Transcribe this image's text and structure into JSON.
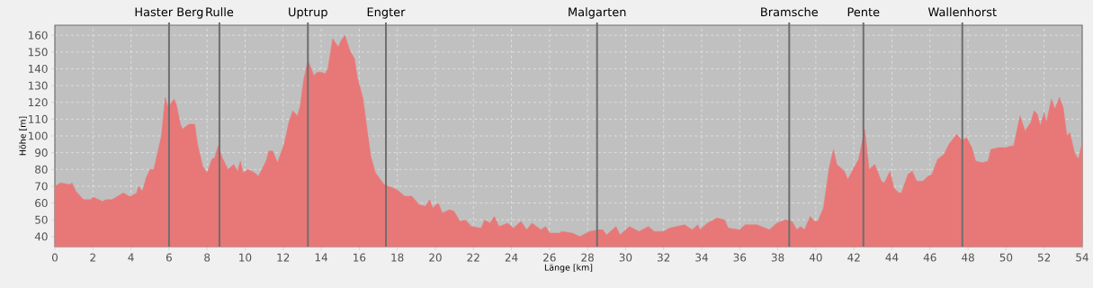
{
  "chart_data": {
    "type": "area",
    "xlabel": "Länge [km]",
    "ylabel": "Höhe [m]",
    "xlim": [
      0,
      54
    ],
    "ylim": [
      34,
      166
    ],
    "xticks": [
      0,
      2,
      4,
      6,
      8,
      10,
      12,
      14,
      16,
      18,
      20,
      22,
      24,
      26,
      28,
      30,
      32,
      34,
      36,
      38,
      40,
      42,
      44,
      46,
      48,
      50,
      52,
      54
    ],
    "yticks": [
      40,
      50,
      60,
      70,
      80,
      90,
      100,
      110,
      120,
      130,
      140,
      150,
      160
    ],
    "grid": true,
    "marker": "none",
    "ref_lines": [
      {
        "axis": "x",
        "value": 6.0,
        "label": "Haster Berg",
        "color": "#6e6e6e"
      },
      {
        "axis": "x",
        "value": 8.65,
        "label": "Rulle",
        "color": "#6e6e6e"
      },
      {
        "axis": "x",
        "value": 13.3,
        "label": "Uptrup",
        "color": "#6e6e6e"
      },
      {
        "axis": "x",
        "value": 17.4,
        "label": "Engter",
        "color": "#6e6e6e"
      },
      {
        "axis": "x",
        "value": 28.5,
        "label": "Malgarten",
        "color": "#6e6e6e"
      },
      {
        "axis": "x",
        "value": 38.6,
        "label": "Bramsche",
        "color": "#6e6e6e"
      },
      {
        "axis": "x",
        "value": 42.5,
        "label": "Pente",
        "color": "#6e6e6e"
      },
      {
        "axis": "x",
        "value": 47.7,
        "label": "Wallenhorst",
        "color": "#6e6e6e"
      }
    ],
    "series": [
      {
        "color": "#e87878",
        "x": [
          0,
          0.3,
          0.8,
          0.9,
          1.1,
          1.5,
          1.9,
          2.0,
          2.3,
          2.5,
          2.7,
          3.0,
          3.3,
          3.6,
          3.9,
          4.0,
          4.3,
          4.4,
          4.6,
          4.8,
          5.0,
          5.2,
          5.4,
          5.6,
          5.8,
          5.95,
          6.27,
          6.4,
          6.6,
          6.7,
          7.05,
          7.35,
          7.5,
          7.77,
          8.0,
          8.25,
          8.4,
          8.58,
          8.8,
          9.1,
          9.4,
          9.6,
          9.75,
          9.9,
          10.15,
          10.5,
          10.7,
          11.1,
          11.25,
          11.45,
          11.7,
          12.05,
          12.3,
          12.5,
          12.75,
          12.9,
          13.07,
          13.3,
          13.55,
          13.6,
          13.8,
          14.0,
          14.2,
          14.35,
          14.6,
          14.9,
          15.05,
          15.25,
          15.5,
          15.75,
          15.9,
          16.2,
          16.4,
          16.6,
          16.85,
          17.3,
          17.97,
          18.4,
          18.76,
          19.15,
          19.47,
          19.7,
          19.86,
          20.15,
          20.37,
          20.74,
          20.98,
          21.3,
          21.57,
          21.9,
          22.4,
          22.6,
          22.86,
          23.1,
          23.35,
          23.8,
          24.1,
          24.5,
          24.8,
          25.08,
          25.55,
          25.8,
          26.0,
          26.5,
          26.65,
          27.2,
          27.6,
          28.1,
          28.56,
          28.8,
          29.0,
          29.5,
          29.7,
          30.2,
          30.7,
          31.2,
          31.5,
          32.0,
          32.3,
          33.1,
          33.5,
          33.8,
          33.9,
          34.3,
          34.8,
          35.2,
          35.4,
          35.98,
          36.3,
          36.9,
          37.56,
          37.95,
          38.4,
          38.75,
          39.0,
          39.2,
          39.4,
          39.7,
          39.94,
          40.1,
          40.4,
          40.7,
          40.93,
          41.1,
          41.5,
          41.68,
          42.0,
          42.25,
          42.57,
          42.8,
          43.1,
          43.44,
          43.6,
          43.9,
          44.1,
          44.36,
          44.5,
          44.84,
          45.07,
          45.3,
          45.63,
          45.9,
          46.1,
          46.4,
          46.73,
          47.0,
          47.4,
          47.7,
          47.92,
          48.2,
          48.4,
          48.74,
          49.05,
          49.2,
          49.6,
          50.0,
          50.24,
          50.4,
          50.73,
          51.0,
          51.3,
          51.47,
          51.64,
          51.8,
          52.0,
          52.12,
          52.38,
          52.57,
          52.8,
          53.0,
          53.2,
          53.35,
          53.6,
          53.8,
          54.0
        ],
        "values": [
          70,
          72,
          71,
          72,
          67,
          62,
          62,
          63.5,
          62,
          61,
          62,
          62,
          64,
          66,
          64,
          64,
          66,
          70,
          67,
          75,
          80,
          80,
          90,
          100,
          123,
          117,
          122,
          118,
          107,
          104,
          107,
          107,
          95,
          82,
          78,
          86,
          87,
          94,
          87,
          80,
          83,
          79,
          85,
          78,
          80,
          78,
          76,
          85,
          91,
          91,
          84,
          95,
          108,
          115,
          112,
          118,
          133,
          145,
          138,
          136,
          138,
          138,
          137,
          140,
          158,
          153,
          157,
          160,
          151,
          146,
          135,
          122,
          105,
          88,
          78,
          71,
          68,
          64,
          64,
          59,
          58,
          62,
          57,
          60,
          54,
          56,
          55,
          49,
          50,
          46,
          45,
          50,
          48,
          52,
          46,
          48,
          45,
          49,
          44,
          48,
          44,
          46,
          42,
          42,
          43,
          42,
          40,
          43,
          44,
          44,
          41,
          46,
          41,
          46,
          43,
          46,
          43,
          43,
          45,
          47,
          44,
          47,
          44,
          48,
          51,
          50,
          45,
          44,
          47,
          47,
          44,
          48,
          50,
          49,
          44,
          46,
          44,
          52,
          49,
          49,
          57,
          81,
          92,
          83,
          79,
          74,
          81,
          86,
          104,
          80,
          83,
          73,
          72,
          79,
          69,
          66,
          66,
          77,
          79,
          73,
          73,
          76,
          77,
          86,
          89,
          95,
          101,
          97,
          99,
          93,
          85,
          84,
          85,
          92,
          93,
          93,
          94,
          94,
          112,
          103,
          108,
          115,
          113,
          106,
          114,
          108,
          122,
          116,
          123,
          117,
          100,
          102,
          90,
          86,
          96
        ]
      }
    ]
  }
}
